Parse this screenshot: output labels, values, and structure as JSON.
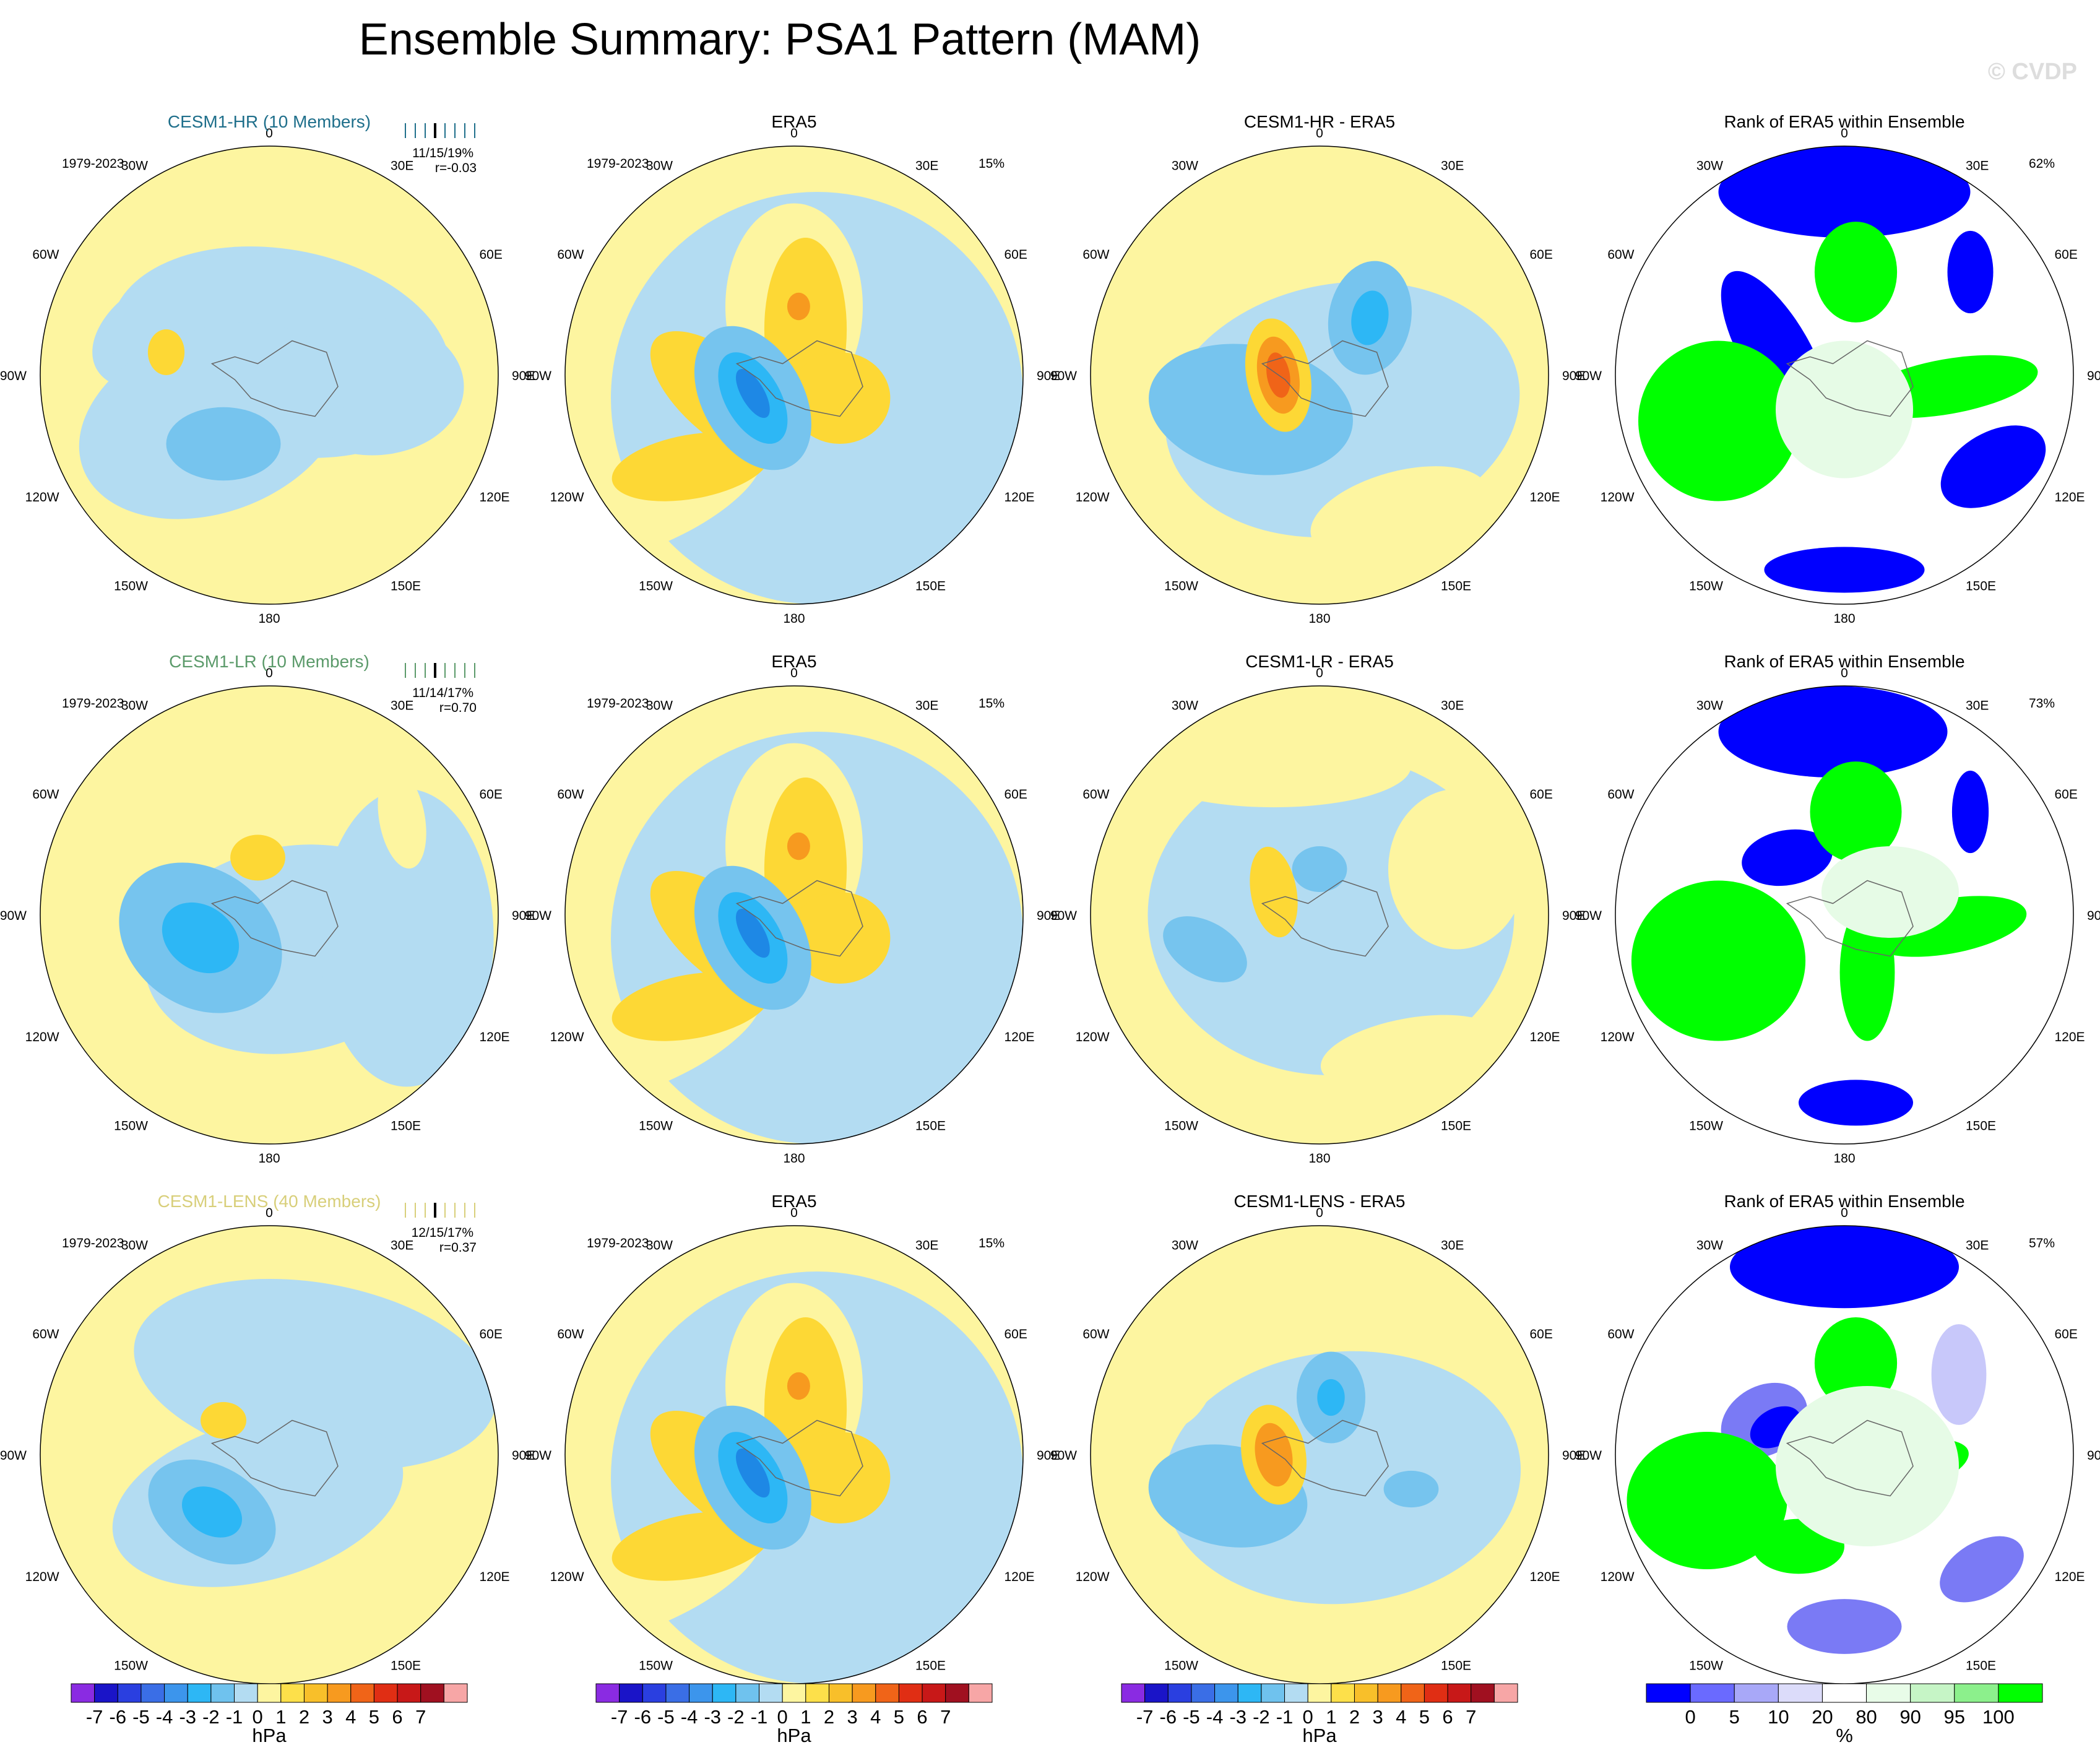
{
  "figure": {
    "title": "Ensemble Summary: PSA1 Pattern (MAM)",
    "watermark": "© CVDP",
    "period": "1979-2023",
    "obs_label": "ERA5",
    "rank_title": "Rank of ERA5 within Ensemble",
    "obs_explained_variance": "15%",
    "longitude_labels": [
      "0",
      "30E",
      "60E",
      "90E",
      "120E",
      "150E",
      "180",
      "150W",
      "120W",
      "90W",
      "60W",
      "30W"
    ]
  },
  "rows": [
    {
      "model_title": "CESM1-HR (10 Members)",
      "model_title_color": "#1f6f8b",
      "stats": "11/15/19%",
      "pattern_corr": "r=-0.03",
      "diff_title": "CESM1-HR - ERA5",
      "rank_percent": "62%"
    },
    {
      "model_title": "CESM1-LR (10 Members)",
      "model_title_color": "#5b9a6a",
      "stats": "11/14/17%",
      "pattern_corr": "r=0.70",
      "diff_title": "CESM1-LR - ERA5",
      "rank_percent": "73%"
    },
    {
      "model_title": "CESM1-LENS (40 Members)",
      "model_title_color": "#d8cf7a",
      "stats": "12/15/17%",
      "pattern_corr": "r=0.37",
      "diff_title": "CESM1-LENS - ERA5",
      "rank_percent": "57%"
    }
  ],
  "colorbars": {
    "hpa": {
      "labels": [
        "-7",
        "-6",
        "-5",
        "-4",
        "-3",
        "-2",
        "-1",
        "0",
        "1",
        "2",
        "3",
        "4",
        "5",
        "6",
        "7"
      ],
      "colors": [
        "#8a2be2",
        "#1a14c8",
        "#2a3fe0",
        "#3a6ee6",
        "#3c95ec",
        "#2db7f5",
        "#6fc2ee",
        "#b3dcf2",
        "#fdf5a0",
        "#fde04a",
        "#f8bf2a",
        "#f79a1f",
        "#f06418",
        "#e02e14",
        "#c81818",
        "#a01020",
        "#f7a6a6"
      ],
      "unit": "hPa"
    },
    "rank": {
      "labels": [
        "0",
        "5",
        "10",
        "20",
        "80",
        "90",
        "95",
        "100"
      ],
      "colors": [
        "#0000ff",
        "#6a6aff",
        "#a8a8f8",
        "#dcdcfa",
        "#ffffff",
        "#e8fce8",
        "#c6f5c6",
        "#8cf08c",
        "#00ff00"
      ],
      "unit": "%"
    }
  },
  "chart_data": [
    {
      "type": "heatmap",
      "description_fields": "polar stereographic SLP regression maps (PSA1), 3 rows x 4 columns",
      "panels": [
        [
          "CESM1-HR (10 Members)",
          "ERA5",
          "CESM1-HR - ERA5",
          "Rank of ERA5 within Ensemble"
        ],
        [
          "CESM1-LR (10 Members)",
          "ERA5",
          "CESM1-LR - ERA5",
          "Rank of ERA5 within Ensemble"
        ],
        [
          "CESM1-LENS (40 Members)",
          "ERA5",
          "CESM1-LENS - ERA5",
          "Rank of ERA5 within Ensemble"
        ]
      ],
      "contour_levels_hPa": [
        -7,
        -6,
        -5,
        -4,
        -3,
        -2,
        -1,
        0,
        1,
        2,
        3,
        4,
        5,
        6,
        7
      ],
      "rank_levels_percent": [
        0,
        5,
        10,
        20,
        80,
        90,
        95,
        100
      ],
      "colorbar_unit_maps": "hPa",
      "colorbar_unit_rank": "%"
    }
  ]
}
